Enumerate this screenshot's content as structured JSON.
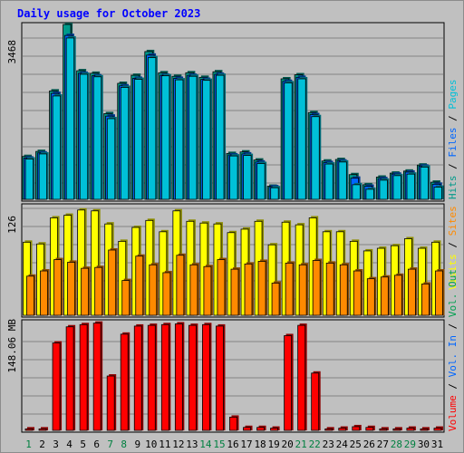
{
  "title": "Daily usage for October 2023",
  "colors": {
    "background": "#c0c0c0",
    "title": "#0000ff",
    "hits": "#009a8a",
    "files": "#0066ff",
    "pages": "#00c0d8",
    "visits": "#ffff00",
    "sites": "#ff8a00",
    "volume_in": "#ff0000",
    "volume_out": "#00a050",
    "weekday": "#000000",
    "weekend": "#008040"
  },
  "chart_data": [
    {
      "type": "bar",
      "panel": "hits-files",
      "scale_label": "3468",
      "ylim": [
        0,
        3468
      ],
      "legend": [
        "Hits",
        "/",
        "Files",
        "/",
        "Pages"
      ],
      "categories": [
        "1",
        "2",
        "3",
        "4",
        "5",
        "6",
        "7",
        "8",
        "9",
        "10",
        "11",
        "12",
        "13",
        "14",
        "15",
        "16",
        "17",
        "18",
        "19",
        "20",
        "21",
        "22",
        "23",
        "24",
        "25",
        "26",
        "27",
        "28",
        "29",
        "30",
        "31"
      ],
      "series": [
        {
          "name": "Hits",
          "values": [
            850,
            950,
            2150,
            3468,
            2550,
            2500,
            1700,
            2300,
            2460,
            2930,
            2510,
            2440,
            2510,
            2420,
            2530,
            910,
            940,
            780,
            260,
            2390,
            2470,
            1720,
            760,
            790,
            490,
            290,
            440,
            520,
            560,
            680,
            340
          ]
        },
        {
          "name": "Files",
          "values": [
            820,
            920,
            2100,
            3250,
            2500,
            2450,
            1650,
            2250,
            2400,
            2860,
            2460,
            2400,
            2460,
            2380,
            2480,
            880,
            900,
            740,
            250,
            2340,
            2420,
            1680,
            730,
            760,
            420,
            260,
            410,
            500,
            540,
            660,
            300
          ]
        },
        {
          "name": "Pages",
          "values": [
            800,
            900,
            2050,
            3200,
            2480,
            2430,
            1600,
            2220,
            2380,
            2810,
            2450,
            2370,
            2440,
            2360,
            2460,
            860,
            870,
            710,
            230,
            2310,
            2390,
            1640,
            700,
            740,
            290,
            200,
            380,
            470,
            500,
            640,
            240
          ]
        }
      ]
    },
    {
      "type": "bar",
      "panel": "visits-sites",
      "scale_label": "126",
      "ylim": [
        0,
        126
      ],
      "legend": [
        "Visits",
        "/",
        "Sites"
      ],
      "categories": [
        "1",
        "2",
        "3",
        "4",
        "5",
        "6",
        "7",
        "8",
        "9",
        "10",
        "11",
        "12",
        "13",
        "14",
        "15",
        "16",
        "17",
        "18",
        "19",
        "20",
        "21",
        "22",
        "23",
        "24",
        "25",
        "26",
        "27",
        "28",
        "29",
        "30",
        "31"
      ],
      "series": [
        {
          "name": "Visits",
          "values": [
            84,
            82,
            112,
            115,
            121,
            120,
            105,
            85,
            101,
            109,
            96,
            120,
            108,
            106,
            105,
            95,
            99,
            108,
            81,
            107,
            104,
            112,
            96,
            96,
            85,
            74,
            77,
            80,
            88,
            77,
            84
          ]
        },
        {
          "name": "Sites",
          "values": [
            45,
            51,
            64,
            61,
            54,
            55,
            75,
            40,
            68,
            58,
            49,
            69,
            58,
            56,
            64,
            53,
            59,
            62,
            37,
            60,
            58,
            63,
            60,
            58,
            51,
            42,
            44,
            46,
            53,
            36,
            51
          ]
        }
      ]
    },
    {
      "type": "bar",
      "panel": "volume",
      "scale_label": "148.06 MB",
      "ylim": [
        0,
        148.06
      ],
      "legend": [
        "Volume",
        "/",
        "Vol. In",
        "/",
        "Vol. Out"
      ],
      "categories": [
        "1",
        "2",
        "3",
        "4",
        "5",
        "6",
        "7",
        "8",
        "9",
        "10",
        "11",
        "12",
        "13",
        "14",
        "15",
        "16",
        "17",
        "18",
        "19",
        "20",
        "21",
        "22",
        "23",
        "24",
        "25",
        "26",
        "27",
        "28",
        "29",
        "30",
        "31"
      ],
      "series": [
        {
          "name": "Volume",
          "values": [
            2,
            2,
            119,
            141,
            144,
            146,
            74,
            131,
            142,
            143,
            144,
            145,
            143,
            144,
            142,
            18,
            4,
            4,
            3,
            129,
            143,
            78,
            2,
            3,
            5,
            4,
            2,
            2,
            3,
            2,
            3
          ]
        }
      ]
    }
  ],
  "day_labels": [
    "1",
    "2",
    "3",
    "4",
    "5",
    "6",
    "7",
    "8",
    "9",
    "10",
    "11",
    "12",
    "13",
    "14",
    "15",
    "16",
    "17",
    "18",
    "19",
    "20",
    "21",
    "22",
    "23",
    "24",
    "25",
    "26",
    "27",
    "28",
    "29",
    "30",
    "31"
  ],
  "weekend_days": [
    1,
    7,
    8,
    14,
    15,
    21,
    22,
    28,
    29
  ]
}
